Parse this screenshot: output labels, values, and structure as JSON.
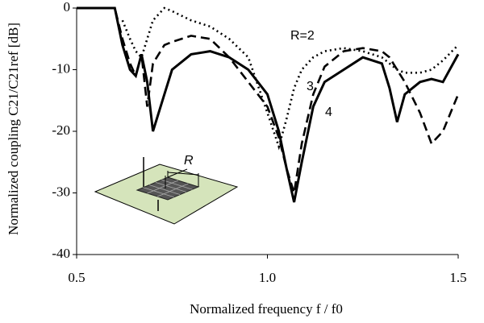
{
  "chart_data": {
    "type": "line",
    "xlabel": "Normalized frequency f / f0",
    "ylabel": "Normalized coupling C21/C21ref [dB]",
    "xlim": [
      0.5,
      1.5
    ],
    "ylim": [
      -40,
      0
    ],
    "xticks": [
      0.5,
      {
        "value": 1,
        "label": "1.0"
      },
      1.5
    ],
    "yticks": [
      -40,
      -30,
      -20,
      -10,
      0
    ],
    "inset_label": "R",
    "x": [
      0.5,
      0.55,
      0.6,
      0.62,
      0.64,
      0.655,
      0.67,
      0.685,
      0.7,
      0.73,
      0.75,
      0.8,
      0.85,
      0.9,
      0.95,
      1.0,
      1.03,
      1.05,
      1.07,
      1.09,
      1.12,
      1.15,
      1.2,
      1.25,
      1.3,
      1.32,
      1.34,
      1.36,
      1.4,
      1.43,
      1.46,
      1.5
    ],
    "series": [
      {
        "name": "R=2",
        "color": "#000000",
        "dash": "dotted",
        "values": [
          null,
          null,
          null,
          -2,
          -5,
          -7,
          -8,
          -5,
          -2,
          0,
          -0.5,
          -2,
          -3,
          -5,
          -8,
          -17,
          -22.5,
          -18,
          -13,
          -10,
          -8,
          -7,
          -6.5,
          -7,
          -8,
          -9,
          -10,
          -10.5,
          -10.5,
          -10,
          -8.5,
          -6
        ]
      },
      {
        "name": "3",
        "color": "#000000",
        "dash": "dashed",
        "values": [
          0,
          0,
          0,
          -5,
          -9,
          -11,
          -7.5,
          -16,
          -9,
          -6,
          -5.5,
          -4.5,
          -5,
          -8,
          -12,
          -16,
          -21,
          -26,
          -30,
          -22,
          -14,
          -9.5,
          -7,
          -6.5,
          -7,
          -8,
          -10,
          -12,
          -17,
          -22,
          -20,
          -14
        ]
      },
      {
        "name": "4",
        "color": "#000000",
        "dash": "solid",
        "values": [
          0,
          0,
          0,
          -6,
          -10,
          -11,
          -7.5,
          -12,
          -20,
          -14,
          -10,
          -7.5,
          -7,
          -8,
          -10,
          -14,
          -20,
          -26,
          -31.5,
          -25,
          -16,
          -12,
          -10,
          -8,
          -9,
          -13,
          -18.5,
          -14,
          -12,
          -11.5,
          -12,
          -7.5
        ]
      }
    ]
  }
}
